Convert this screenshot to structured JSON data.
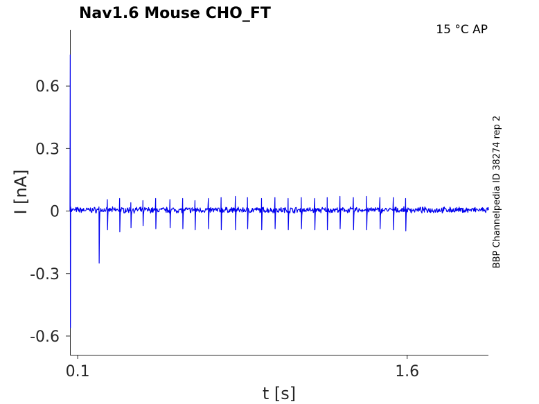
{
  "chart_data": {
    "type": "line",
    "title": "Nav1.6  Mouse  CHO_FT",
    "annotation": "15 °C  AP",
    "side_label": "BBP Channelpedia ID 38274 rep 2",
    "xlabel": "t [s]",
    "ylabel": "I [nA]",
    "xlim": [
      0.065,
      1.97
    ],
    "ylim": [
      -0.69,
      0.87
    ],
    "x_ticks": [
      {
        "value": 0.1,
        "label": "0.1"
      },
      {
        "value": 1.6,
        "label": "1.6"
      }
    ],
    "y_ticks": [
      {
        "value": -0.6,
        "label": "-0.6"
      },
      {
        "value": -0.3,
        "label": "-0.3"
      },
      {
        "value": 0,
        "label": "0"
      },
      {
        "value": 0.3,
        "label": "0.3"
      },
      {
        "value": 0.6,
        "label": "0.6"
      }
    ],
    "grid": false,
    "series": [
      {
        "color": "#0000ee",
        "baseline": 0.005,
        "initial_transient": {
          "t": 0.067,
          "max": 0.75,
          "min": -0.56
        },
        "spikes": [
          {
            "t": 0.197,
            "max": 0.02,
            "min": -0.25
          },
          {
            "t": 0.235,
            "max": 0.055,
            "min": -0.09
          },
          {
            "t": 0.291,
            "max": 0.06,
            "min": -0.1
          },
          {
            "t": 0.342,
            "max": 0.04,
            "min": -0.08
          },
          {
            "t": 0.397,
            "max": 0.05,
            "min": -0.07
          },
          {
            "t": 0.455,
            "max": 0.06,
            "min": -0.085
          },
          {
            "t": 0.52,
            "max": 0.055,
            "min": -0.08
          },
          {
            "t": 0.578,
            "max": 0.06,
            "min": -0.085
          },
          {
            "t": 0.634,
            "max": 0.05,
            "min": -0.09
          },
          {
            "t": 0.695,
            "max": 0.06,
            "min": -0.085
          },
          {
            "t": 0.753,
            "max": 0.065,
            "min": -0.09
          },
          {
            "t": 0.818,
            "max": 0.07,
            "min": -0.09
          },
          {
            "t": 0.873,
            "max": 0.065,
            "min": -0.085
          },
          {
            "t": 0.937,
            "max": 0.06,
            "min": -0.09
          },
          {
            "t": 0.998,
            "max": 0.065,
            "min": -0.085
          },
          {
            "t": 1.058,
            "max": 0.06,
            "min": -0.09
          },
          {
            "t": 1.118,
            "max": 0.065,
            "min": -0.085
          },
          {
            "t": 1.179,
            "max": 0.06,
            "min": -0.09
          },
          {
            "t": 1.236,
            "max": 0.065,
            "min": -0.09
          },
          {
            "t": 1.294,
            "max": 0.07,
            "min": -0.085
          },
          {
            "t": 1.355,
            "max": 0.065,
            "min": -0.09
          },
          {
            "t": 1.415,
            "max": 0.07,
            "min": -0.09
          },
          {
            "t": 1.476,
            "max": 0.065,
            "min": -0.085
          },
          {
            "t": 1.537,
            "max": 0.065,
            "min": -0.09
          },
          {
            "t": 1.593,
            "max": 0.06,
            "min": -0.095
          }
        ],
        "end_t": 1.97
      }
    ]
  }
}
